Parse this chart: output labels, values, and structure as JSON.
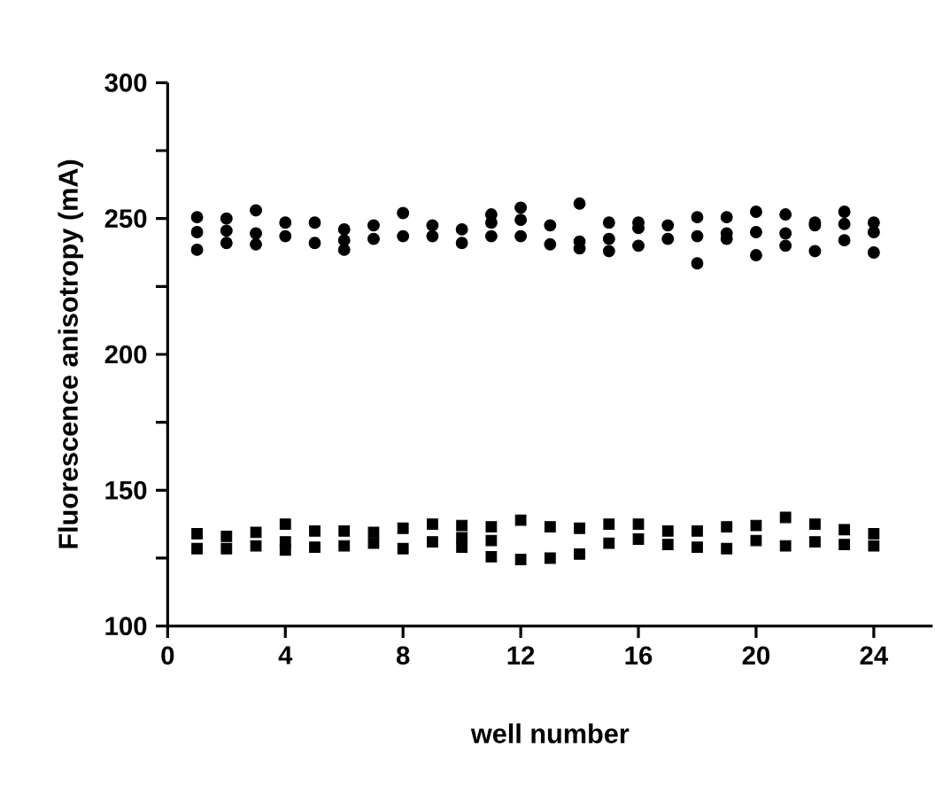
{
  "chart_data": {
    "type": "scatter",
    "xlabel": "well number",
    "ylabel": "Fluorescence anisotropy (mA)",
    "xlim": [
      0,
      26
    ],
    "ylim": [
      100,
      300
    ],
    "xticks": [
      0,
      4,
      8,
      12,
      16,
      20,
      24
    ],
    "yticks": [
      100,
      {
        "value": 125,
        "label": null
      },
      150,
      {
        "value": 175,
        "label": null
      },
      200,
      {
        "value": 225,
        "label": null
      },
      250,
      {
        "value": 275,
        "label": null
      },
      300
    ],
    "grid": false,
    "series": [
      {
        "color": "#000000",
        "marker": "circle",
        "x": [
          1,
          1,
          1,
          2,
          2,
          2,
          3,
          3,
          3,
          4,
          4,
          5,
          5,
          6,
          6,
          6,
          7,
          7,
          8,
          8,
          9,
          9,
          10,
          10,
          11,
          11,
          11,
          12,
          12,
          12,
          13,
          13,
          14,
          14,
          14,
          15,
          15,
          15,
          16,
          16,
          16,
          17,
          17,
          18,
          18,
          18,
          19,
          19,
          19,
          20,
          20,
          20,
          21,
          21,
          21,
          22,
          22,
          22,
          23,
          23,
          23,
          24,
          24,
          24
        ],
        "values": [
          250.5,
          245,
          238.5,
          250,
          245.5,
          241,
          253,
          244.5,
          240.5,
          248.5,
          243.5,
          248.5,
          241,
          246,
          242,
          238.5,
          247.5,
          242.5,
          252,
          243.5,
          247.5,
          243.5,
          246,
          241,
          251.5,
          248.5,
          243.5,
          254,
          249.5,
          243.5,
          247.5,
          240.5,
          255.5,
          241.5,
          239,
          248.5,
          242.5,
          238,
          248.5,
          246.5,
          240,
          247.5,
          242.5,
          250.5,
          243.5,
          233.5,
          250.5,
          244.5,
          242.5,
          252.5,
          245,
          236.5,
          251.5,
          244.5,
          240,
          248.5,
          247.5,
          238,
          252.5,
          248,
          242,
          248.5,
          245,
          237.5
        ]
      },
      {
        "color": "#000000",
        "marker": "square",
        "x": [
          1,
          1,
          2,
          2,
          3,
          3,
          4,
          4,
          4,
          5,
          5,
          6,
          6,
          7,
          7,
          8,
          8,
          9,
          9,
          10,
          10,
          10,
          11,
          11,
          11,
          12,
          12,
          13,
          13,
          14,
          14,
          15,
          15,
          16,
          16,
          17,
          17,
          18,
          18,
          19,
          19,
          20,
          20,
          21,
          21,
          22,
          22,
          23,
          23,
          24,
          24
        ],
        "values": [
          134,
          128.5,
          133,
          128.5,
          134.5,
          129.5,
          137.5,
          131,
          128,
          135,
          129,
          135,
          129.5,
          134.5,
          130.5,
          136,
          128.5,
          137.5,
          131,
          137,
          132.5,
          129,
          136.5,
          131.5,
          125.5,
          139,
          124.5,
          136.5,
          125,
          136,
          126.5,
          137.5,
          130.5,
          137.5,
          132,
          135,
          130,
          135,
          129,
          136.5,
          128.5,
          137,
          131.5,
          140,
          129.5,
          137.5,
          131,
          135.5,
          130,
          134,
          129.5
        ]
      }
    ]
  }
}
